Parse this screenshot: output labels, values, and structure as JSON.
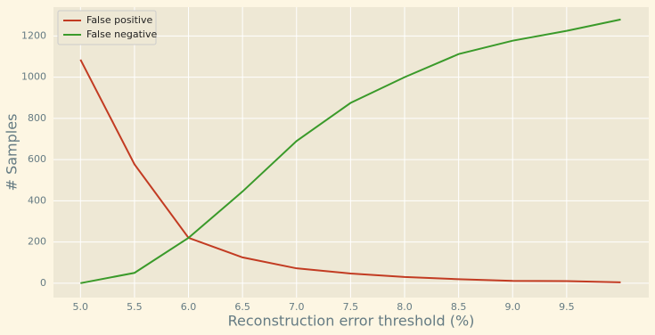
{
  "chart_data": {
    "type": "line",
    "xlabel": "Reconstruction error threshold (%)",
    "ylabel": "# Samples",
    "x": [
      5.0,
      5.5,
      6.0,
      6.5,
      7.0,
      7.5,
      8.0,
      8.5,
      9.0,
      9.5,
      10.0
    ],
    "series": [
      {
        "name": "False positive",
        "color": "#c23b22",
        "values": [
          1085,
          577,
          220,
          125,
          72,
          47,
          30,
          19,
          11,
          10,
          4
        ]
      },
      {
        "name": "False negative",
        "color": "#3a9a2a",
        "values": [
          0,
          50,
          220,
          445,
          690,
          875,
          1000,
          1112,
          1177,
          1225,
          1280
        ]
      }
    ],
    "xlim": [
      4.75,
      10.26
    ],
    "ylim": [
      -70,
      1340
    ],
    "xticks": [
      {
        "value": 5,
        "label": "5.0"
      },
      5.5,
      {
        "value": 6,
        "label": "6.0"
      },
      6.5,
      {
        "value": 7,
        "label": "7.0"
      },
      7.5,
      {
        "value": 8,
        "label": "8.0"
      },
      8.5,
      {
        "value": 9,
        "label": "9.0"
      },
      9.5
    ],
    "yticks": [
      0,
      200,
      400,
      600,
      800,
      1000,
      1200
    ],
    "grid": true,
    "legend": "upper left"
  }
}
